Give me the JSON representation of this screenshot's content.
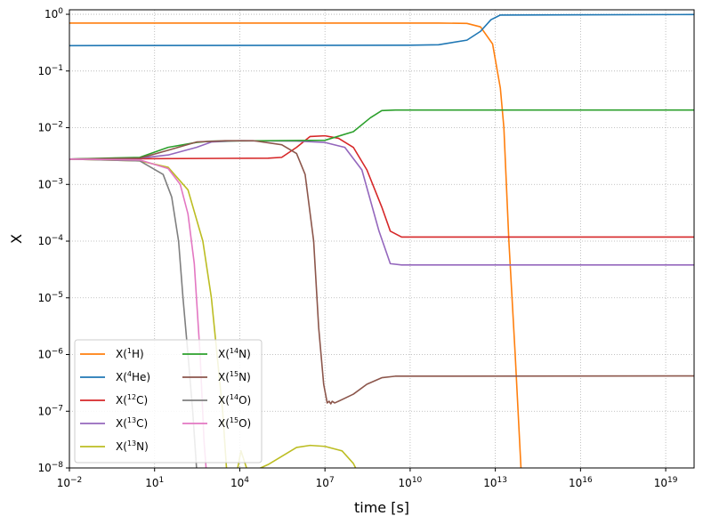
{
  "chart_data": {
    "type": "line",
    "title": "",
    "xlabel": "time [s]",
    "ylabel": "X",
    "xscale": "log",
    "yscale": "log",
    "xlim": [
      0.01,
      1e+20
    ],
    "ylim": [
      1e-08,
      1.2
    ],
    "grid": true,
    "legend_placement": "lower-left",
    "legend_columns": 2,
    "x_ticks": [
      {
        "value": 0.01,
        "base": "10",
        "exp": "−2"
      },
      {
        "value": 10,
        "base": "10",
        "exp": "1"
      },
      {
        "value": 10000,
        "base": "10",
        "exp": "4"
      },
      {
        "value": 10000000.0,
        "base": "10",
        "exp": "7"
      },
      {
        "value": 10000000000.0,
        "base": "10",
        "exp": "10"
      },
      {
        "value": 10000000000000.0,
        "base": "10",
        "exp": "13"
      },
      {
        "value": 1e+16,
        "base": "10",
        "exp": "16"
      },
      {
        "value": 1e+19,
        "base": "10",
        "exp": "19"
      }
    ],
    "y_ticks": [
      {
        "value": 1e-08,
        "base": "10",
        "exp": "−8"
      },
      {
        "value": 1e-07,
        "base": "10",
        "exp": "−7"
      },
      {
        "value": 1e-06,
        "base": "10",
        "exp": "−6"
      },
      {
        "value": 1e-05,
        "base": "10",
        "exp": "−5"
      },
      {
        "value": 0.0001,
        "base": "10",
        "exp": "−4"
      },
      {
        "value": 0.001,
        "base": "10",
        "exp": "−3"
      },
      {
        "value": 0.01,
        "base": "10",
        "exp": "−2"
      },
      {
        "value": 0.1,
        "base": "10",
        "exp": "−1"
      },
      {
        "value": 1,
        "base": "10",
        "exp": "0"
      }
    ],
    "series": [
      {
        "name": "X(1H)",
        "label_pre": "X(",
        "label_sup": "1",
        "label_post": "H)",
        "color": "#ff7f0e",
        "points": [
          [
            0.01,
            0.7
          ],
          [
            100000000000.0,
            0.7
          ],
          [
            1000000000000.0,
            0.69
          ],
          [
            3000000000000.0,
            0.6
          ],
          [
            8000000000000.0,
            0.3
          ],
          [
            15000000000000.0,
            0.05
          ],
          [
            20000000000000.0,
            0.01
          ],
          [
            30000000000000.0,
            0.0001
          ],
          [
            50000000000000.0,
            1e-06
          ],
          [
            80000000000000.0,
            1e-08
          ]
        ]
      },
      {
        "name": "X(4He)",
        "label_pre": "X(",
        "label_sup": "4",
        "label_post": "He)",
        "color": "#1f77b4",
        "points": [
          [
            0.01,
            0.28
          ],
          [
            10000000000.0,
            0.285
          ],
          [
            100000000000.0,
            0.29
          ],
          [
            1000000000000.0,
            0.35
          ],
          [
            3000000000000.0,
            0.5
          ],
          [
            7000000000000.0,
            0.8
          ],
          [
            15000000000000.0,
            0.97
          ],
          [
            1e+20,
            0.99
          ]
        ]
      },
      {
        "name": "X(12C)",
        "label_pre": "X(",
        "label_sup": "12",
        "label_post": "C)",
        "color": "#d62728",
        "points": [
          [
            0.01,
            0.0028
          ],
          [
            100000.0,
            0.0029
          ],
          [
            300000.0,
            0.003
          ],
          [
            1000000.0,
            0.0045
          ],
          [
            3000000.0,
            0.007
          ],
          [
            10000000.0,
            0.0072
          ],
          [
            30000000.0,
            0.0065
          ],
          [
            100000000.0,
            0.0045
          ],
          [
            300000000.0,
            0.0018
          ],
          [
            1000000000.0,
            0.0004
          ],
          [
            2000000000.0,
            0.00015
          ],
          [
            5000000000.0,
            0.000118
          ],
          [
            1e+20,
            0.000118
          ]
        ]
      },
      {
        "name": "X(13C)",
        "label_pre": "X(",
        "label_sup": "13",
        "label_post": "C)",
        "color": "#9467bd",
        "points": [
          [
            0.01,
            0.0028
          ],
          [
            3,
            0.0029
          ],
          [
            30,
            0.0033
          ],
          [
            300,
            0.0045
          ],
          [
            1000,
            0.0056
          ],
          [
            10000,
            0.0059
          ],
          [
            1000000.0,
            0.0058
          ],
          [
            10000000.0,
            0.0055
          ],
          [
            50000000.0,
            0.0045
          ],
          [
            200000000.0,
            0.0018
          ],
          [
            800000000.0,
            0.00015
          ],
          [
            2000000000.0,
            4e-05
          ],
          [
            5000000000.0,
            3.8e-05
          ],
          [
            1e+20,
            3.8e-05
          ]
        ]
      },
      {
        "name": "X(13N)",
        "label_pre": "X(",
        "label_sup": "13",
        "label_post": "N)",
        "color": "#bcbd22",
        "points": [
          [
            0.01,
            0.0028
          ],
          [
            3,
            0.0026
          ],
          [
            30,
            0.002
          ],
          [
            150,
            0.0008
          ],
          [
            500,
            0.0001
          ],
          [
            1000,
            1e-05
          ],
          [
            2500,
            1e-07
          ],
          [
            3500,
            8e-09
          ],
          [
            6000,
            4e-09
          ],
          [
            11000,
            2e-08
          ],
          [
            20000,
            8e-09
          ],
          [
            100000,
            1.15e-08
          ],
          [
            1000000.0,
            2.3e-08
          ],
          [
            3000000.0,
            2.5e-08
          ],
          [
            10000000.0,
            2.4e-08
          ],
          [
            40000000.0,
            2e-08
          ],
          [
            100000000.0,
            1.2e-08
          ],
          [
            200000000.0,
            6e-09
          ]
        ]
      },
      {
        "name": "X(14N)",
        "label_pre": "X(",
        "label_sup": "14",
        "label_post": "N)",
        "color": "#2ca02c",
        "points": [
          [
            0.01,
            0.0028
          ],
          [
            3,
            0.003
          ],
          [
            30,
            0.0045
          ],
          [
            300,
            0.0055
          ],
          [
            1000,
            0.0058
          ],
          [
            10000000.0,
            0.006
          ],
          [
            100000000.0,
            0.0085
          ],
          [
            400000000.0,
            0.015
          ],
          [
            1000000000.0,
            0.02
          ],
          [
            3000000000.0,
            0.0205
          ],
          [
            1e+20,
            0.0205
          ]
        ]
      },
      {
        "name": "X(15N)",
        "label_pre": "X(",
        "label_sup": "15",
        "label_post": "N)",
        "color": "#8c564b",
        "points": [
          [
            0.01,
            0.0028
          ],
          [
            3,
            0.0029
          ],
          [
            30,
            0.004
          ],
          [
            300,
            0.0056
          ],
          [
            3000,
            0.0059
          ],
          [
            30000,
            0.0059
          ],
          [
            300000,
            0.005
          ],
          [
            1000000.0,
            0.0035
          ],
          [
            2000000.0,
            0.0015
          ],
          [
            4000000.0,
            0.0001
          ],
          [
            6000000.0,
            3e-06
          ],
          [
            9000000.0,
            3e-07
          ],
          [
            12000000.0,
            1.4e-07
          ],
          [
            14000000.0,
            1.5e-07
          ],
          [
            16000000.0,
            1.35e-07
          ],
          [
            18000000.0,
            1.5e-07
          ],
          [
            22000000.0,
            1.4e-07
          ],
          [
            30000000.0,
            1.5e-07
          ],
          [
            100000000.0,
            2e-07
          ],
          [
            300000000.0,
            3e-07
          ],
          [
            1000000000.0,
            3.9e-07
          ],
          [
            3000000000.0,
            4.15e-07
          ],
          [
            1e+20,
            4.2e-07
          ]
        ]
      },
      {
        "name": "X(14O)",
        "label_pre": "X(",
        "label_sup": "14",
        "label_post": "O)",
        "color": "#7f7f7f",
        "points": [
          [
            0.01,
            0.0028
          ],
          [
            3,
            0.0026
          ],
          [
            20,
            0.0015
          ],
          [
            40,
            0.0006
          ],
          [
            70,
            0.0001
          ],
          [
            100,
            1e-05
          ],
          [
            150,
            1e-06
          ],
          [
            220,
            1e-07
          ],
          [
            300,
            1e-08
          ]
        ]
      },
      {
        "name": "X(15O)",
        "label_pre": "X(",
        "label_sup": "15",
        "label_post": "O)",
        "color": "#e377c2",
        "points": [
          [
            0.01,
            0.0028
          ],
          [
            3,
            0.0027
          ],
          [
            30,
            0.0019
          ],
          [
            80,
            0.001
          ],
          [
            150,
            0.0003
          ],
          [
            250,
            4e-05
          ],
          [
            400,
            1e-06
          ],
          [
            550,
            3e-08
          ],
          [
            650,
            1e-08
          ]
        ]
      }
    ],
    "legend_order": [
      0,
      1,
      2,
      3,
      4,
      5,
      6,
      7,
      8
    ]
  }
}
